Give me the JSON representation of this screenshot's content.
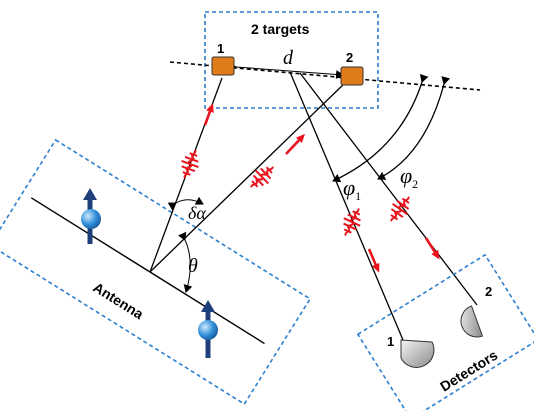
{
  "targets_box": {
    "title": "2 targets",
    "target1_label": "1",
    "target2_label": "2"
  },
  "distance_label": "d",
  "angles": {
    "delta_alpha": "δα",
    "theta": "θ",
    "phi1": "φ",
    "phi1_sub": "1",
    "phi2": "φ",
    "phi2_sub": "2"
  },
  "antenna": {
    "label": "Antenna"
  },
  "detectors": {
    "label": "Detectors",
    "detector1_label": "1",
    "detector2_label": "2"
  },
  "colors": {
    "box_border": "#2b7fd0",
    "target_fill": "#e07b1a",
    "signal_red": "#e8141e",
    "spin_arrow": "#1f3f7a",
    "spin_ball": "#2f8fd8"
  }
}
